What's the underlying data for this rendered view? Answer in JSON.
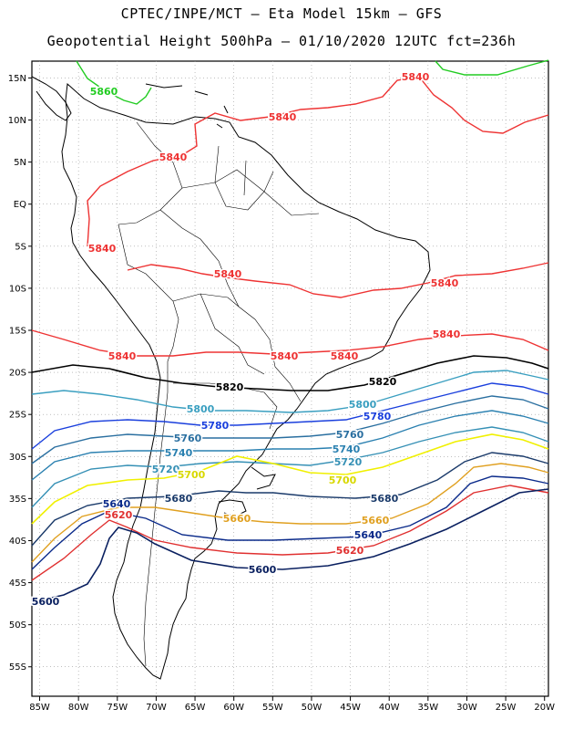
{
  "header": {
    "line1": "CPTEC/INPE/MCT –  Eta Model 15km – GFS",
    "line2": "Geopotential Height 500hPa – 01/10/2020 12UTC fct=236h"
  },
  "axes": {
    "lat_labels": [
      "15N",
      "10N",
      "5N",
      "EQ",
      "5S",
      "10S",
      "15S",
      "20S",
      "25S",
      "30S",
      "35S",
      "40S",
      "45S",
      "50S",
      "55S"
    ],
    "lon_labels": [
      "85W",
      "80W",
      "75W",
      "70W",
      "65W",
      "60W",
      "55W",
      "50W",
      "45W",
      "40W",
      "35W",
      "30W",
      "25W",
      "20W"
    ],
    "lat_values": [
      15,
      10,
      5,
      0,
      -5,
      -10,
      -15,
      -20,
      -25,
      -30,
      -35,
      -40,
      -45,
      -50,
      -55
    ],
    "lon_values": [
      -85,
      -80,
      -75,
      -70,
      -65,
      -60,
      -55,
      -50,
      -45,
      -40,
      -35,
      -30,
      -25,
      -20
    ],
    "grid": true
  },
  "contours": [
    {
      "level": "5860",
      "color": "#22cc22"
    },
    {
      "level": "5840",
      "color": "#ee3333"
    },
    {
      "level": "5820",
      "color": "#000000"
    },
    {
      "level": "5800",
      "color": "#3a9fc0"
    },
    {
      "level": "5780",
      "color": "#1a3fdd"
    },
    {
      "level": "5760",
      "color": "#2a6fa0"
    },
    {
      "level": "5740",
      "color": "#2a80b0"
    },
    {
      "level": "5720",
      "color": "#3590b5"
    },
    {
      "level": "5700",
      "color": "#f0f000"
    },
    {
      "level": "5680",
      "color": "#1a3a6a"
    },
    {
      "level": "5660",
      "color": "#e0a020"
    },
    {
      "level": "5640",
      "color": "#0a2a8a"
    },
    {
      "level": "5620",
      "color": "#e03030"
    },
    {
      "level": "5600",
      "color": "#0a2060"
    }
  ]
}
